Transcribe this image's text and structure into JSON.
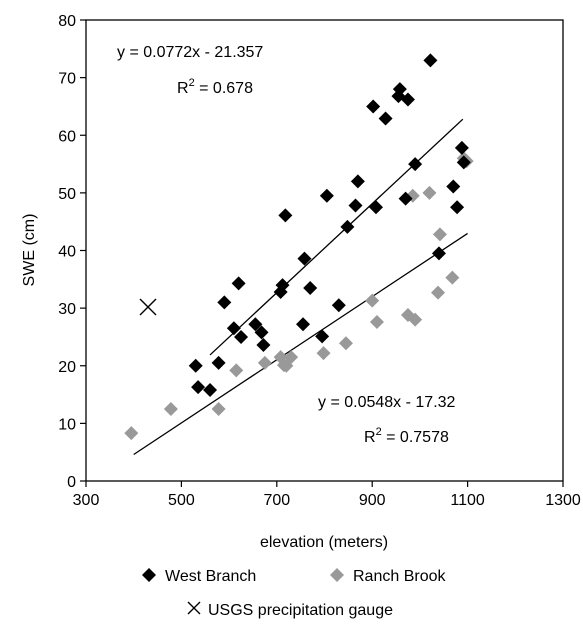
{
  "chart_data": {
    "type": "scatter",
    "xlabel": "elevation (meters)",
    "ylabel": "SWE (cm)",
    "xlim": [
      300,
      1300
    ],
    "ylim": [
      0,
      80
    ],
    "xticks": [
      300,
      500,
      700,
      900,
      1100,
      1300
    ],
    "yticks": [
      0,
      10,
      20,
      30,
      40,
      50,
      60,
      70,
      80
    ],
    "grid": false,
    "legend_position": "bottom",
    "series": [
      {
        "name": "West Branch",
        "marker": "diamond",
        "color": "#000000",
        "points": [
          [
            530,
            20
          ],
          [
            535,
            16.3
          ],
          [
            560,
            15.8
          ],
          [
            578,
            20.5
          ],
          [
            590,
            31
          ],
          [
            610,
            26.5
          ],
          [
            620,
            34.3
          ],
          [
            625,
            25
          ],
          [
            655,
            27.2
          ],
          [
            668,
            25.8
          ],
          [
            672,
            23.6
          ],
          [
            708,
            32.8
          ],
          [
            712,
            34
          ],
          [
            718,
            46.1
          ],
          [
            755,
            27.2
          ],
          [
            758,
            38.6
          ],
          [
            770,
            33.5
          ],
          [
            795,
            25.1
          ],
          [
            805,
            49.5
          ],
          [
            830,
            30.5
          ],
          [
            848,
            44.1
          ],
          [
            865,
            47.8
          ],
          [
            870,
            52
          ],
          [
            902,
            65
          ],
          [
            908,
            47.5
          ],
          [
            928,
            62.9
          ],
          [
            955,
            66.8
          ],
          [
            958,
            68
          ],
          [
            970,
            49
          ],
          [
            975,
            66.2
          ],
          [
            990,
            55
          ],
          [
            1022,
            73
          ],
          [
            1040,
            39.5
          ],
          [
            1070,
            51.1
          ],
          [
            1078,
            47.5
          ],
          [
            1088,
            57.8
          ],
          [
            1092,
            55.3
          ]
        ],
        "trendline": {
          "slope": 0.0772,
          "intercept": -21.357,
          "x_range": [
            560,
            1090
          ]
        }
      },
      {
        "name": "Ranch Brook",
        "marker": "diamond",
        "color": "#999999",
        "points": [
          [
            395,
            8.3
          ],
          [
            478,
            12.5
          ],
          [
            578,
            12.5
          ],
          [
            615,
            19.2
          ],
          [
            675,
            20.5
          ],
          [
            708,
            21.5
          ],
          [
            715,
            20.1
          ],
          [
            720,
            20
          ],
          [
            730,
            21.5
          ],
          [
            798,
            22.2
          ],
          [
            845,
            23.9
          ],
          [
            900,
            31.3
          ],
          [
            910,
            27.6
          ],
          [
            975,
            28.8
          ],
          [
            985,
            49.5
          ],
          [
            990,
            28
          ],
          [
            1020,
            50
          ],
          [
            1038,
            32.7
          ],
          [
            1042,
            42.8
          ],
          [
            1068,
            35.3
          ],
          [
            1092,
            56
          ],
          [
            1098,
            55.5
          ]
        ],
        "trendline": {
          "slope": 0.0548,
          "intercept": -17.32,
          "x_range": [
            400,
            1100
          ]
        }
      },
      {
        "name": "USGS precipitation gauge",
        "marker": "x",
        "color": "#000000",
        "points": [
          [
            430,
            30.2
          ]
        ]
      }
    ],
    "annotations": [
      {
        "eq": "y = 0.0772x - 21.357",
        "r2_prefix": "R",
        "r2_sup": "2",
        "r2_value": " = 0.678"
      },
      {
        "eq": "y = 0.0548x - 17.32",
        "r2_prefix": "R",
        "r2_sup": "2",
        "r2_value": " = 0.7578"
      }
    ]
  }
}
